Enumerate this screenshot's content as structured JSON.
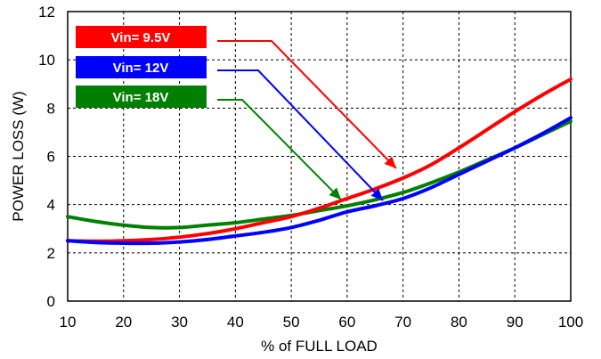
{
  "chart_data": {
    "type": "line",
    "xlabel": "% of FULL LOAD",
    "ylabel": "POWER LOSS (W)",
    "xlim": [
      10,
      100
    ],
    "ylim": [
      0,
      12
    ],
    "xticks": [
      10,
      20,
      30,
      40,
      50,
      60,
      70,
      80,
      90,
      100
    ],
    "yticks": [
      0,
      2,
      4,
      6,
      8,
      10,
      12
    ],
    "grid": true,
    "legend_position": "top-left",
    "series": [
      {
        "name": "Vin= 9.5V",
        "color": "#ff0000",
        "x": [
          10,
          15,
          20,
          25,
          30,
          35,
          40,
          45,
          50,
          55,
          60,
          65,
          70,
          75,
          80,
          85,
          90,
          95,
          100
        ],
        "y": [
          2.5,
          2.48,
          2.5,
          2.55,
          2.65,
          2.8,
          3.0,
          3.25,
          3.5,
          3.85,
          4.25,
          4.65,
          5.1,
          5.65,
          6.35,
          7.1,
          7.85,
          8.55,
          9.2
        ]
      },
      {
        "name": "Vin= 12V",
        "color": "#0000ff",
        "x": [
          10,
          15,
          20,
          25,
          30,
          35,
          40,
          45,
          50,
          55,
          60,
          65,
          70,
          75,
          80,
          85,
          90,
          95,
          100
        ],
        "y": [
          2.5,
          2.43,
          2.4,
          2.4,
          2.45,
          2.55,
          2.7,
          2.85,
          3.05,
          3.35,
          3.7,
          3.95,
          4.25,
          4.7,
          5.25,
          5.8,
          6.35,
          6.95,
          7.6
        ]
      },
      {
        "name": "Vin= 18V",
        "color": "#008000",
        "x": [
          10,
          15,
          20,
          25,
          30,
          35,
          40,
          45,
          50,
          55,
          60,
          65,
          70,
          75,
          80,
          85,
          90,
          95,
          100
        ],
        "y": [
          3.5,
          3.3,
          3.15,
          3.05,
          3.05,
          3.15,
          3.25,
          3.4,
          3.55,
          3.75,
          3.95,
          4.2,
          4.5,
          4.9,
          5.35,
          5.85,
          6.35,
          6.9,
          7.45
        ]
      }
    ]
  }
}
